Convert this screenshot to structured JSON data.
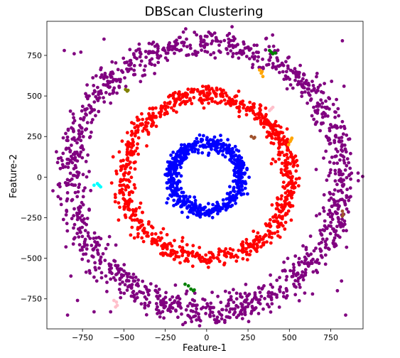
{
  "chart_data": {
    "type": "scatter",
    "title": "DBScan Clustering",
    "xlabel": "Feature-1",
    "ylabel": "Feature-2",
    "xlim": [
      -965,
      945
    ],
    "ylim": [
      -935,
      960
    ],
    "xticks": [
      -750,
      -500,
      -250,
      0,
      250,
      500,
      750
    ],
    "yticks": [
      -750,
      -500,
      -250,
      0,
      250,
      500,
      750
    ],
    "grid": false,
    "legend": "none",
    "series": [
      {
        "color": "#800080",
        "rings": [
          {
            "r": 820,
            "count": 1350,
            "spread": 45
          }
        ],
        "outliers": [
          [
            -860,
            780
          ],
          [
            -840,
            -850
          ],
          [
            -820,
            -610
          ],
          [
            820,
            840
          ],
          [
            840,
            -850
          ],
          [
            -620,
            850
          ],
          [
            -800,
            760
          ],
          [
            830,
            560
          ],
          [
            815,
            -640
          ],
          [
            -760,
            770
          ],
          [
            -900,
            90
          ],
          [
            870,
            -120
          ],
          [
            -330,
            820
          ],
          [
            -780,
            -760
          ],
          [
            790,
            -700
          ],
          [
            -850,
            -430
          ],
          [
            -540,
            -560
          ],
          [
            550,
            570
          ],
          [
            -460,
            700
          ],
          [
            -95,
            -870
          ],
          [
            640,
            -720
          ],
          [
            -580,
            -830
          ],
          [
            780,
            -150
          ],
          [
            820,
            160
          ],
          [
            -680,
            -830
          ]
        ]
      },
      {
        "color": "#ff0000",
        "rings": [
          {
            "r": 500,
            "count": 900,
            "spread": 30
          }
        ],
        "outliers": []
      },
      {
        "color": "#0000ff",
        "rings": [
          {
            "r": 210,
            "count": 600,
            "spread": 22
          }
        ],
        "outliers": []
      },
      {
        "color": "#ffa500",
        "points": [
          [
            320,
            660
          ],
          [
            330,
            640
          ],
          [
            340,
            620
          ],
          [
            335,
            650
          ],
          [
            505,
            220
          ],
          [
            515,
            240
          ],
          [
            495,
            200
          ],
          [
            510,
            230
          ]
        ]
      },
      {
        "color": "#008000",
        "points": [
          [
            390,
            770
          ],
          [
            400,
            760
          ],
          [
            415,
            765
          ],
          [
            380,
            780
          ],
          [
            -130,
            -660
          ],
          [
            -110,
            -670
          ],
          [
            -95,
            -690
          ],
          [
            -80,
            -700
          ],
          [
            -75,
            -695
          ]
        ]
      },
      {
        "color": "#808000",
        "points": [
          [
            -490,
            540
          ],
          [
            -475,
            535
          ],
          [
            -480,
            530
          ]
        ]
      },
      {
        "color": "#ffc0cb",
        "points": [
          [
            390,
            420
          ],
          [
            400,
            430
          ],
          [
            380,
            410
          ],
          [
            -560,
            -760
          ],
          [
            -545,
            -770
          ],
          [
            -540,
            -790
          ],
          [
            -550,
            -800
          ]
        ]
      },
      {
        "color": "#a0522d",
        "points": [
          [
            270,
            250
          ],
          [
            285,
            240
          ],
          [
            290,
            245
          ],
          [
            820,
            -210
          ],
          [
            825,
            -230
          ],
          [
            820,
            -240
          ]
        ]
      },
      {
        "color": "#00ffff",
        "points": [
          [
            -680,
            -50
          ],
          [
            -660,
            -40
          ],
          [
            -650,
            -50
          ],
          [
            -640,
            -60
          ]
        ]
      }
    ]
  }
}
